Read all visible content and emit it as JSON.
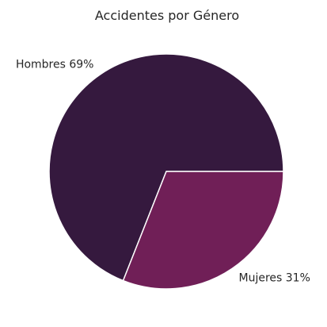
{
  "chart_data": {
    "type": "pie",
    "title": "Accidentes por Género",
    "categories": [
      "Hombres",
      "Mujeres"
    ],
    "values": [
      69,
      31
    ],
    "labels": [
      "Hombres 69%",
      "Mujeres 31%"
    ],
    "colors": [
      "#35193e",
      "#701f57"
    ],
    "start_angle_deg": 0,
    "direction": "counterclockwise",
    "legend": "none",
    "grid": false
  }
}
